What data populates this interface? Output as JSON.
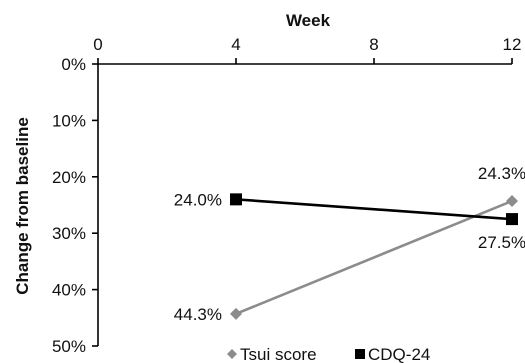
{
  "chart_data": {
    "type": "line",
    "xlabel": "Week",
    "ylabel": "Change from baseline",
    "x_axis_position": "top",
    "y_axis_reversed": true,
    "xlim": [
      0,
      12
    ],
    "ylim": [
      0,
      50
    ],
    "x_ticks": [
      0,
      4,
      8,
      12
    ],
    "x_tick_labels": [
      "0",
      "4",
      "8",
      "12"
    ],
    "y_ticks": [
      0,
      10,
      20,
      30,
      40,
      50
    ],
    "y_tick_labels": [
      "0%",
      "10%",
      "20%",
      "30%",
      "40%",
      "50%"
    ],
    "grid": false,
    "legend_position": "bottom",
    "series": [
      {
        "name": "Tsui score",
        "color": "#8c8c8c",
        "marker": "diamond",
        "x": [
          4,
          12
        ],
        "y": [
          44.3,
          24.3
        ],
        "labels": [
          "44.3%",
          "24.3%"
        ]
      },
      {
        "name": "CDQ-24",
        "color": "#000000",
        "marker": "square",
        "x": [
          4,
          12
        ],
        "y": [
          24.0,
          27.5
        ],
        "labels": [
          "24.0%",
          "27.5%"
        ]
      }
    ]
  }
}
